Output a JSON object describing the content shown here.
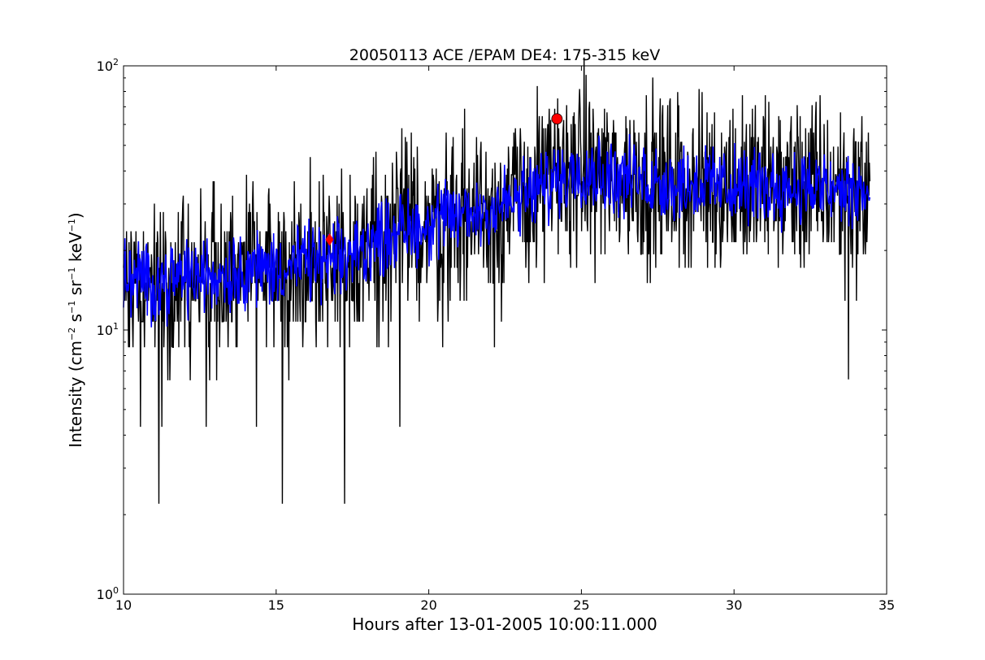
{
  "chart_data": {
    "type": "line",
    "title": "20050113 ACE /EPAM DE4: 175-315 keV",
    "xlabel": "Hours after 13-01-2005 10:00:11.000",
    "ylabel": {
      "text_before": "Intensity (cm",
      "exp1": "−2",
      "mid1": " s",
      "exp2": "−1",
      "mid2": " sr",
      "exp3": "−1",
      "mid3": " keV",
      "exp4": "−1",
      "text_after": ")"
    },
    "xlim": [
      10,
      35
    ],
    "ylim": [
      1,
      100
    ],
    "yscale": "log",
    "grid": false,
    "x_ticks": [
      "10",
      "15",
      "20",
      "25",
      "30",
      "35"
    ],
    "y_ticks": [
      {
        "base": "10",
        "exp": "0",
        "value": 1
      },
      {
        "base": "10",
        "exp": "1",
        "value": 10
      },
      {
        "base": "10",
        "exp": "2",
        "value": 100
      }
    ],
    "series": [
      {
        "style": "raw",
        "color": "#000000",
        "x_range": [
          10,
          34.45
        ],
        "x": [
          10,
          11,
          12,
          13,
          14,
          15,
          16,
          17,
          18,
          19,
          20,
          21,
          22,
          23,
          24,
          25,
          26,
          27,
          28,
          29,
          30,
          31,
          32,
          33,
          34,
          34.45
        ],
        "y": [
          16,
          15,
          16,
          16,
          17,
          17,
          18,
          18,
          21,
          24,
          25,
          27,
          29,
          31,
          36,
          41,
          38,
          37,
          36,
          36,
          35,
          35,
          35,
          34,
          33,
          33
        ],
        "spikes_down": [
          [
            11.15,
            2.2
          ],
          [
            15.2,
            2.2
          ],
          [
            17.25,
            2.2
          ],
          [
            19.05,
            4.3
          ],
          [
            11.25,
            4.3
          ],
          [
            12.7,
            4.3
          ],
          [
            14.35,
            4.3
          ],
          [
            10.55,
            4.3
          ],
          [
            33.75,
            6.5
          ],
          [
            20.45,
            8.6
          ],
          [
            22.15,
            8.6
          ]
        ],
        "spikes_up": [
          [
            16.65,
            27
          ],
          [
            17.6,
            30
          ],
          [
            21.6,
            46
          ],
          [
            23.7,
            48
          ],
          [
            24.25,
            58
          ],
          [
            26.1,
            56
          ],
          [
            28.65,
            55
          ],
          [
            31.85,
            57
          ],
          [
            33.6,
            56
          ]
        ]
      },
      {
        "style": "smoothed",
        "color": "#0000ff",
        "x_range": [
          10,
          34.45
        ],
        "x": [
          10,
          11,
          12,
          13,
          14,
          15,
          16,
          17,
          18,
          19,
          20,
          21,
          22,
          23,
          24,
          25,
          26,
          27,
          28,
          29,
          30,
          31,
          32,
          33,
          34,
          34.45
        ],
        "y": [
          16,
          15,
          16,
          16,
          17,
          17,
          18,
          18,
          21,
          24,
          25,
          27,
          29,
          31,
          36,
          41,
          38,
          37,
          36,
          36,
          35,
          35,
          35,
          34,
          33,
          33
        ]
      }
    ],
    "markers": [
      {
        "shape": "diamond",
        "color": "#ff0000",
        "x": 16.75,
        "y": 22
      },
      {
        "shape": "circle",
        "color": "#ff0000",
        "x": 24.2,
        "y": 63
      }
    ]
  }
}
